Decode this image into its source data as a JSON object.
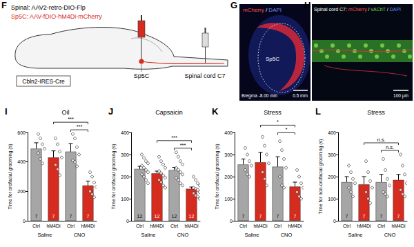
{
  "panels": {
    "F": {
      "label": "F",
      "injection_spinal": "Spinal: AAV2-retro-DIO-Flp",
      "injection_sp5c": "Sp5C: AAV-fDIO-hM4Di-mCherry",
      "mouse_line": "Cbln2-IRES-Cre",
      "site_sp5c": "Sp5C",
      "site_spinal": "Spinal cord C7"
    },
    "G": {
      "label": "G",
      "stain": [
        "mCherry",
        "/",
        "DAPI"
      ],
      "region": "Sp5C",
      "coordinate": "Bregma -8.00 mm",
      "scale_bar": "0.5 mm"
    },
    "H": {
      "label": "H",
      "title": "Spinal cord C7:",
      "stain": [
        "mCherry",
        "/",
        "vAChT",
        "/",
        "DAPI"
      ],
      "scale_bar": "100 μm"
    }
  },
  "chart_data": [
    {
      "type": "bar",
      "label": "I",
      "title": "Oil",
      "y_label": "Time for orofacial grooming (s)",
      "categories": [
        "Ctrl",
        "hM4Di",
        "Ctrl",
        "hM4Di"
      ],
      "groups": [
        {
          "label": "Saline",
          "span": [
            0,
            1
          ]
        },
        {
          "label": "CNO",
          "span": [
            2,
            3
          ]
        }
      ],
      "colors": [
        "#a6a6a6",
        "#d62b1f",
        "#a6a6a6",
        "#d62b1f"
      ],
      "values": [
        490,
        430,
        470,
        240
      ],
      "errors": [
        40,
        45,
        55,
        30
      ],
      "n": [
        7,
        7,
        7,
        7
      ],
      "points": [
        [
          590,
          560,
          520,
          490,
          460,
          420,
          390
        ],
        [
          560,
          520,
          470,
          430,
          380,
          350,
          310
        ],
        [
          590,
          560,
          500,
          450,
          410,
          400,
          370
        ],
        [
          330,
          300,
          260,
          230,
          200,
          180,
          160
        ]
      ],
      "significance": [
        {
          "between": [
            2,
            3
          ],
          "label": "***"
        },
        {
          "between": [
            1,
            3
          ],
          "label": "***"
        }
      ],
      "ylim": [
        0,
        600
      ],
      "yticks": [
        0,
        200,
        400,
        600
      ],
      "grid": false
    },
    {
      "type": "bar",
      "label": "J",
      "title": "Capsaicin",
      "y_label": "Time for orofacial grooming (s)",
      "categories": [
        "Ctrl",
        "hM4Di",
        "Ctrl",
        "hM4Di"
      ],
      "groups": [
        {
          "label": "Saline",
          "span": [
            0,
            1
          ]
        },
        {
          "label": "CNO",
          "span": [
            2,
            3
          ]
        }
      ],
      "colors": [
        "#a6a6a6",
        "#d62b1f",
        "#a6a6a6",
        "#d62b1f"
      ],
      "values": [
        235,
        215,
        230,
        145
      ],
      "errors": [
        12,
        10,
        12,
        8
      ],
      "n": [
        12,
        12,
        12,
        12
      ],
      "points": [
        [
          300,
          285,
          270,
          260,
          250,
          240,
          230,
          220,
          210,
          200,
          185,
          170
        ],
        [
          290,
          270,
          255,
          240,
          225,
          215,
          205,
          195,
          185,
          175,
          160,
          150
        ],
        [
          310,
          290,
          270,
          255,
          240,
          230,
          220,
          210,
          195,
          185,
          170,
          160
        ],
        [
          200,
          185,
          170,
          160,
          150,
          145,
          140,
          130,
          125,
          115,
          110,
          100
        ]
      ],
      "significance": [
        {
          "between": [
            2,
            3
          ],
          "label": "***"
        },
        {
          "between": [
            1,
            3
          ],
          "label": "***"
        }
      ],
      "ylim": [
        0,
        400
      ],
      "yticks": [
        0,
        100,
        200,
        300,
        400
      ],
      "grid": false
    },
    {
      "type": "bar",
      "label": "K",
      "title": "Stress",
      "y_label": "Time for orofacial grooming (s)",
      "categories": [
        "Ctrl",
        "hM4Di",
        "Ctrl",
        "hM4Di"
      ],
      "groups": [
        {
          "label": "Saline",
          "span": [
            0,
            1
          ]
        },
        {
          "label": "CNO",
          "span": [
            2,
            3
          ]
        }
      ],
      "colors": [
        "#a6a6a6",
        "#d62b1f",
        "#a6a6a6",
        "#d62b1f"
      ],
      "values": [
        255,
        265,
        245,
        155
      ],
      "errors": [
        25,
        45,
        45,
        20
      ],
      "n": [
        7,
        7,
        7,
        7
      ],
      "points": [
        [
          330,
          300,
          270,
          250,
          230,
          210,
          200
        ],
        [
          380,
          340,
          300,
          260,
          220,
          190,
          160
        ],
        [
          360,
          320,
          280,
          240,
          200,
          160,
          150
        ],
        [
          230,
          200,
          170,
          150,
          130,
          110,
          100
        ]
      ],
      "significance": [
        {
          "between": [
            2,
            3
          ],
          "label": "*"
        },
        {
          "between": [
            1,
            3
          ],
          "label": "*"
        }
      ],
      "ylim": [
        0,
        400
      ],
      "yticks": [
        0,
        100,
        200,
        300,
        400
      ],
      "grid": false
    },
    {
      "type": "bar",
      "label": "L",
      "title": "Stress",
      "y_label": "Time for non-orofacial grooming (s)",
      "categories": [
        "Ctrl",
        "hM4Di",
        "Ctrl",
        "hM4Di"
      ],
      "groups": [
        {
          "label": "Saline",
          "span": [
            0,
            1
          ]
        },
        {
          "label": "CNO",
          "span": [
            2,
            3
          ]
        }
      ],
      "colors": [
        "#a6a6a6",
        "#d62b1f",
        "#a6a6a6",
        "#d62b1f"
      ],
      "values": [
        175,
        165,
        175,
        185
      ],
      "errors": [
        25,
        35,
        35,
        25
      ],
      "n": [
        7,
        7,
        7,
        7
      ],
      "points": [
        [
          250,
          220,
          190,
          170,
          150,
          130,
          110
        ],
        [
          270,
          220,
          180,
          150,
          130,
          100,
          80
        ],
        [
          280,
          230,
          190,
          160,
          130,
          120,
          110
        ],
        [
          300,
          250,
          210,
          170,
          140,
          120,
          110
        ]
      ],
      "significance": [
        {
          "between": [
            2,
            3
          ],
          "label": "n.s."
        },
        {
          "between": [
            1,
            3
          ],
          "label": "n.s."
        }
      ],
      "ylim": [
        0,
        400
      ],
      "yticks": [
        0,
        100,
        200,
        300,
        400
      ],
      "grid": false
    }
  ]
}
